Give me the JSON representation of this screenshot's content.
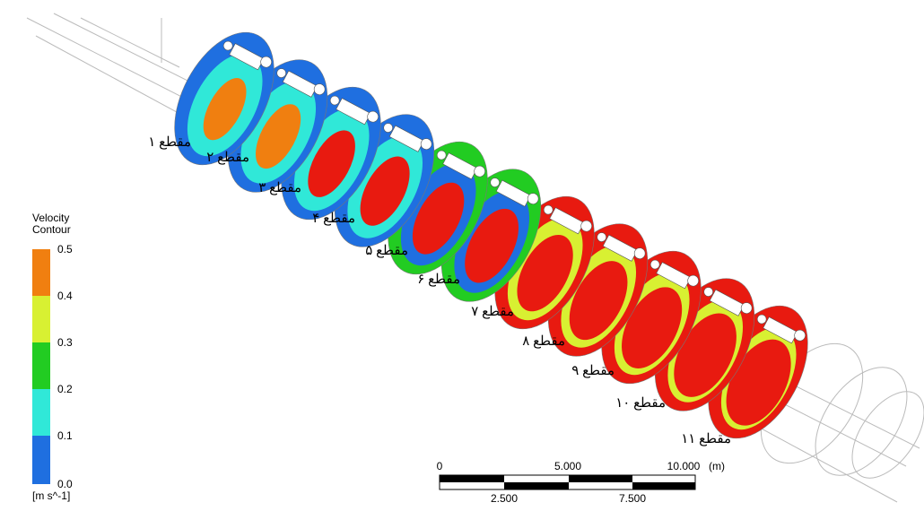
{
  "legend": {
    "title": [
      "Velocity",
      "Contour"
    ],
    "ticks": [
      "0.5",
      "0.4",
      "0.3",
      "0.2",
      "0.1",
      "0.0"
    ],
    "unit": "[m s^-1]"
  },
  "sections": [
    "مقطع ۱",
    "مقطع ۲",
    "مقطع ۳",
    "مقطع ۴",
    "مقطع ۵",
    "مقطع ۶",
    "مقطع ۷",
    "مقطع ۸",
    "مقطع ۹",
    "مقطع ۱۰",
    "مقطع ۱۱"
  ],
  "scale_bar": {
    "top": [
      "0",
      "5.000",
      "10.000"
    ],
    "bottom": [
      "2.500",
      "7.500"
    ],
    "unit": "(m)"
  }
}
